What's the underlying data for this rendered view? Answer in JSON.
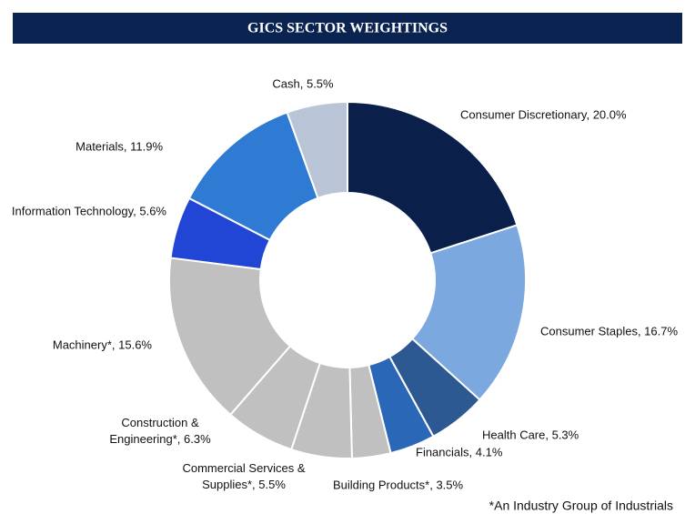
{
  "chart_data": {
    "type": "donut",
    "title": "GICS SECTOR WEIGHTINGS",
    "values": [
      20.0,
      16.7,
      5.3,
      4.1,
      3.5,
      5.5,
      6.3,
      15.6,
      5.6,
      11.9,
      5.5
    ],
    "value_labels": [
      "Consumer Discretionary, 20.0%",
      "Consumer Staples, 16.7%",
      "Health Care, 5.3%",
      "Financials, 4.1%",
      "Building Products*, 3.5%",
      "Commercial Services &\nSupplies*, 5.5%",
      "Construction &\nEngineering*, 6.3%",
      "Machinery*, 15.6%",
      "Information Technology, 5.6%",
      "Materials, 11.9%",
      "Cash, 5.5%"
    ],
    "colors": [
      "#0b1f4b",
      "#7aa8df",
      "#2d5992",
      "#2b67b7",
      "#c0c0c0",
      "#c0c0c0",
      "#c0c0c0",
      "#c0c0c0",
      "#2146d6",
      "#2f7ad2",
      "#b9c4d6"
    ],
    "footnote": "*An Industry Group of Industrials"
  }
}
